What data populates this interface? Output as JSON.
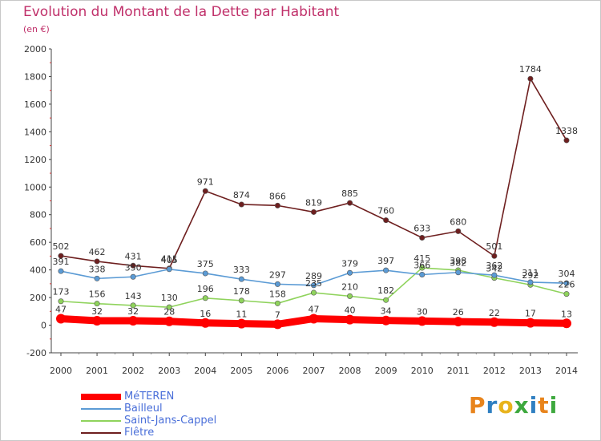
{
  "header": {
    "title": "Evolution du Montant de la Dette par Habitant",
    "subtitle": "(en €)"
  },
  "logo": {
    "text": "Proxiti",
    "colors": [
      "#e8841c",
      "#2f7fc1",
      "#e8b31c",
      "#3da83d",
      "#2f7fc1",
      "#e8841c",
      "#3da83d"
    ]
  },
  "chart_data": {
    "type": "line",
    "title": "Evolution du Montant de la Dette par Habitant",
    "subtitle": "(en €)",
    "xlabel": "",
    "ylabel": "",
    "x": [
      2000,
      2001,
      2002,
      2003,
      2004,
      2005,
      2006,
      2007,
      2008,
      2009,
      2010,
      2011,
      2012,
      2013,
      2014
    ],
    "ylim": [
      -200,
      2000
    ],
    "yticks": [
      -200,
      0,
      200,
      400,
      600,
      800,
      1000,
      1200,
      1400,
      1600,
      1800,
      2000
    ],
    "grid": false,
    "legend_position": "bottom-left",
    "series": [
      {
        "name": "MéTEREN",
        "color": "#ff0000",
        "width": "thick",
        "labels_above": true,
        "values": [
          47,
          32,
          32,
          28,
          16,
          11,
          7,
          47,
          40,
          34,
          30,
          26,
          22,
          17,
          13
        ]
      },
      {
        "name": "Bailleul",
        "color": "#5b9bd5",
        "width": "thin",
        "labels_above": true,
        "values": [
          391,
          338,
          350,
          405,
          375,
          333,
          297,
          289,
          379,
          397,
          366,
          382,
          362,
          311,
          304
        ]
      },
      {
        "name": "Saint-Jans-Cappel",
        "color": "#8fd35c",
        "width": "thin",
        "labels_above": true,
        "values": [
          173,
          156,
          143,
          130,
          196,
          178,
          158,
          235,
          210,
          182,
          415,
          398,
          342,
          292,
          226
        ]
      },
      {
        "name": "Flêtre",
        "color": "#6e1f1f",
        "width": "thin",
        "labels_above": true,
        "values": [
          502,
          462,
          431,
          411,
          971,
          874,
          866,
          819,
          885,
          760,
          633,
          680,
          501,
          1784,
          1338
        ]
      }
    ]
  }
}
